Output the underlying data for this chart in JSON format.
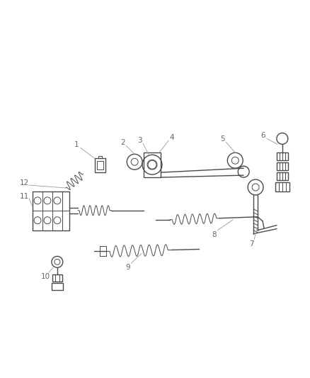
{
  "bg_color": "#ffffff",
  "line_color": "#4a4a4a",
  "label_color": "#666666",
  "leader_color": "#999999",
  "figsize": [
    4.38,
    5.33
  ],
  "dpi": 100
}
